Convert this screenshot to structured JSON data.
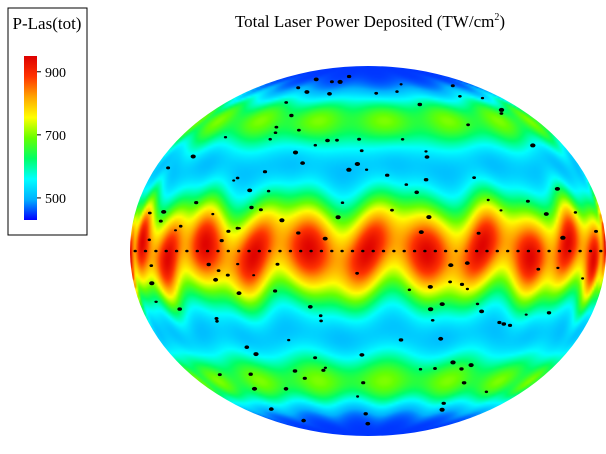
{
  "chart_data": {
    "type": "heatmap",
    "title": "Total Laser Power Deposited (TW/cm",
    "title_superscript": "2",
    "title_close": ")",
    "colorbar": {
      "label": "P-Las(tot)",
      "vmin": 430,
      "vmax": 950,
      "ticks": [
        {
          "value": 900,
          "label": "900"
        },
        {
          "value": 700,
          "label": "700"
        },
        {
          "value": 500,
          "label": "500"
        }
      ],
      "colormap": [
        "#0000ff",
        "#00b0ff",
        "#00ffff",
        "#00ff66",
        "#66ff00",
        "#ffff00",
        "#ffa500",
        "#ff3300",
        "#dd0000"
      ]
    },
    "field": {
      "description_of_pattern": "banded with periodic hot spots",
      "min_value": 440,
      "max_value": 945,
      "equatorial_band_peak": 945,
      "equatorial_band_trough": 820,
      "secondary_band_value": 700,
      "polar_value": 450,
      "hotspot_count": 8
    },
    "beam_markers": {
      "color": "#000000",
      "equator_row_count": 46,
      "scattered_count": 150
    },
    "colors": {
      "background": "#ffffff",
      "frame": "#000000",
      "marker": "#000000"
    }
  }
}
